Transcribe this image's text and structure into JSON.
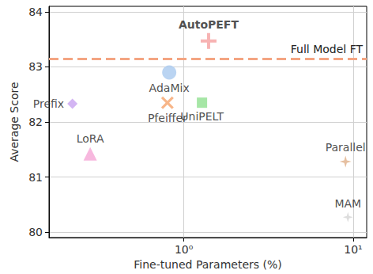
{
  "chart_data": {
    "type": "scatter",
    "x_label": "Fine-tuned Parameters (%)",
    "y_label": "Average Score",
    "log": "x",
    "grid": true,
    "xlim": [
      0.16,
      12
    ],
    "xticks": [
      {
        "value": 1,
        "label": "10⁰"
      },
      {
        "value": 10,
        "label": "10¹"
      }
    ],
    "ylim": [
      79.9,
      84.1
    ],
    "yticks": [
      80,
      81,
      82,
      83,
      84
    ],
    "points": [
      {
        "name": "AutoPEFT",
        "x": 1.4,
        "y": 83.47,
        "color": "#f5a0a0",
        "marker": "plus"
      },
      {
        "name": "AdaMix",
        "x": 0.82,
        "y": 82.9,
        "color": "#a9c9ef",
        "marker": "circle"
      },
      {
        "name": "Prefix",
        "x": 0.22,
        "y": 82.33,
        "color": "#c8a2f0",
        "marker": "diamond"
      },
      {
        "name": "Pfeiffer",
        "x": 0.8,
        "y": 82.35,
        "color": "#f5a26a",
        "marker": "x"
      },
      {
        "name": "UniPELT",
        "x": 1.28,
        "y": 82.35,
        "color": "#90e090",
        "marker": "square"
      },
      {
        "name": "LoRA",
        "x": 0.28,
        "y": 81.42,
        "color": "#f5a6d6",
        "marker": "triangle"
      },
      {
        "name": "Parallel",
        "x": 9.0,
        "y": 81.28,
        "color": "#e0b08a",
        "marker": "star"
      },
      {
        "name": "MAM",
        "x": 9.3,
        "y": 80.27,
        "color": "#d4d4d4",
        "marker": "star"
      }
    ],
    "reference_line": {
      "value": 83.15,
      "label": "Full Model FT",
      "color": "#f4a582",
      "line_style": "dashed"
    }
  }
}
